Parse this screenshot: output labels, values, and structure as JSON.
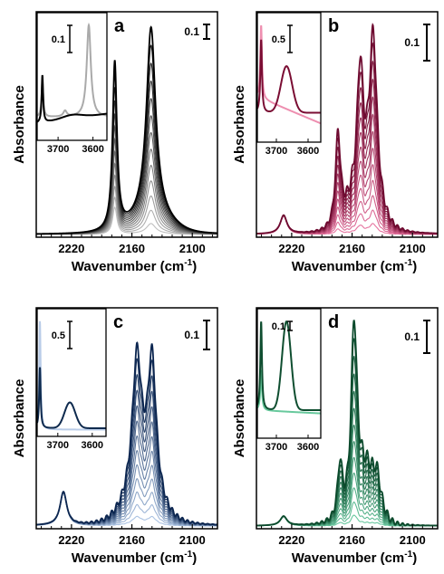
{
  "chart_data": [
    {
      "type": "line",
      "panel_letter": "a",
      "ylabel": "Absorbance",
      "xlabel_main": "Wavenumber (cm",
      "xlabel_sup": "-1",
      "xlabel_tail": ")",
      "xlim": [
        2255,
        2075
      ],
      "xticks": [
        2220,
        2160,
        2100
      ],
      "xtick_labels": [
        "2220",
        "2160",
        "2100"
      ],
      "scale_bar_label": "0.1",
      "scale_bar_value": 0.1,
      "palette": [
        "#cfcfcf",
        "#000000"
      ],
      "series_count": 13,
      "peaks_cm": [
        2177,
        2140
      ],
      "inset": {
        "scale_bar_label": "0.1",
        "xticks": [
          3700,
          3600
        ],
        "xtick_labels": [
          "3700",
          "3600"
        ],
        "xlim": [
          3760,
          3560
        ],
        "colors": [
          "#aaaaaa",
          "#000000"
        ]
      }
    },
    {
      "type": "line",
      "panel_letter": "b",
      "ylabel": "Absorbance",
      "xlabel_main": "Wavenumber (cm",
      "xlabel_sup": "-1",
      "xlabel_tail": ")",
      "xlim": [
        2255,
        2075
      ],
      "xticks": [
        2220,
        2160,
        2100
      ],
      "xtick_labels": [
        "2220",
        "2160",
        "2100"
      ],
      "scale_bar_label": "0.1",
      "scale_bar_value": 0.1,
      "palette": [
        "#f07ca8",
        "#6e0a30"
      ],
      "series_count": 13,
      "peaks_cm": [
        2228,
        2175,
        2152,
        2139
      ],
      "inset": {
        "scale_bar_label": "0.5",
        "xticks": [
          3700,
          3600
        ],
        "xtick_labels": [
          "3700",
          "3600"
        ],
        "xlim": [
          3760,
          3560
        ],
        "colors": [
          "#ee8fb0",
          "#7a0d33"
        ]
      }
    },
    {
      "type": "line",
      "panel_letter": "c",
      "ylabel": "Absorbance",
      "xlabel_main": "Wavenumber (cm",
      "xlabel_sup": "-1",
      "xlabel_tail": ")",
      "xlim": [
        2255,
        2075
      ],
      "xticks": [
        2220,
        2160,
        2100
      ],
      "xtick_labels": [
        "2220",
        "2160",
        "2100"
      ],
      "scale_bar_label": "0.1",
      "scale_bar_value": 0.1,
      "palette": [
        "#b8d0ef",
        "#0c2650"
      ],
      "series_count": 13,
      "peaks_cm": [
        2228,
        2155,
        2140
      ],
      "inset": {
        "scale_bar_label": "0.5",
        "xticks": [
          3700,
          3600
        ],
        "xtick_labels": [
          "3700",
          "3600"
        ],
        "xlim": [
          3760,
          3560
        ],
        "colors": [
          "#b9cce8",
          "#0e2a4e"
        ]
      }
    },
    {
      "type": "line",
      "panel_letter": "d",
      "ylabel": "Absorbance",
      "xlabel_main": "Wavenumber (cm",
      "xlabel_sup": "-1",
      "xlabel_tail": ")",
      "xlim": [
        2255,
        2075
      ],
      "xticks": [
        2220,
        2160,
        2100
      ],
      "xtick_labels": [
        "2220",
        "2160",
        "2100"
      ],
      "scale_bar_label": "0.1",
      "scale_bar_value": 0.1,
      "palette": [
        "#6fd1a8",
        "#0b4a2c"
      ],
      "series_count": 13,
      "peaks_cm": [
        2228,
        2158
      ],
      "inset": {
        "scale_bar_label": "0.1",
        "xticks": [
          3700,
          3600
        ],
        "xtick_labels": [
          "3700",
          "3600"
        ],
        "xlim": [
          3760,
          3560
        ],
        "colors": [
          "#68c99d",
          "#0f4e30"
        ]
      }
    }
  ]
}
